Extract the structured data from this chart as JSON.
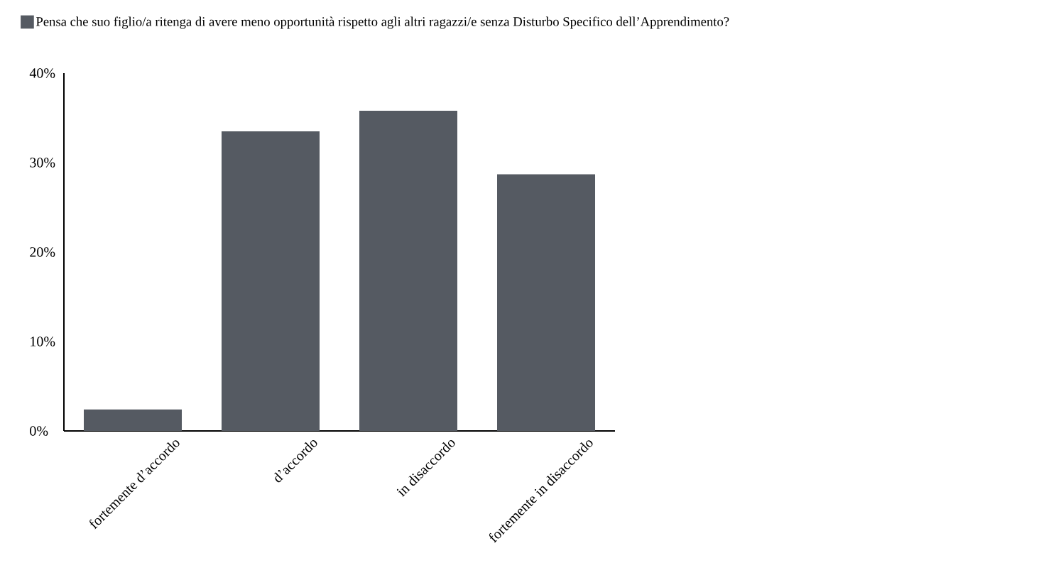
{
  "chart_data": {
    "type": "bar",
    "categories": [
      "fortemente d’accordo",
      "d’accordo",
      "in disaccordo",
      "fortemente in disaccordo"
    ],
    "series": [
      {
        "name": "Pensa che suo figlio/a ritenga di avere meno opportunità rispetto agli altri ragazzi/e senza Disturbo Specifico dell’Apprendimento?",
        "color": "#555a62",
        "values": [
          2.4,
          33.5,
          35.8,
          28.7
        ]
      }
    ],
    "ylim": [
      0,
      40
    ],
    "yticks": [
      {
        "value": 0,
        "label": "0%"
      },
      {
        "value": 10,
        "label": "10%"
      },
      {
        "value": 20,
        "label": "20%"
      },
      {
        "value": 30,
        "label": "30%"
      },
      {
        "value": 40,
        "label": "40%"
      }
    ],
    "grid": false,
    "legend": "top"
  }
}
